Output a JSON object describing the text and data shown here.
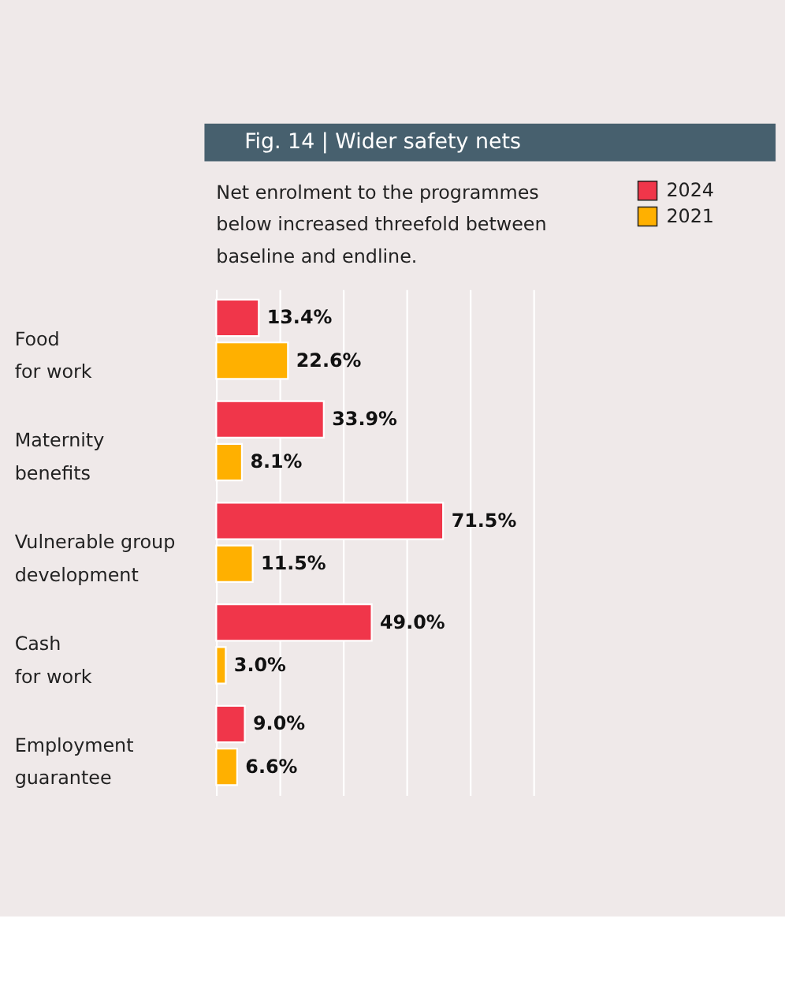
{
  "chart_data": {
    "type": "bar",
    "orientation": "horizontal",
    "title": "Fig. 14 | Wider safety nets",
    "subtitle": "Net enrolment to the programmes below increased threefold  between baseline and endline.",
    "categories": [
      "Food\nfor work",
      "Maternity\nbenefits",
      "Vulnerable group\ndevelopment",
      "Cash\nfor work",
      "Employment\nguarantee"
    ],
    "series": [
      {
        "name": "2024",
        "color": "#f0364a",
        "values": [
          13.4,
          33.9,
          71.5,
          49.0,
          9.0
        ],
        "value_labels": [
          "13.4%",
          "33.9%",
          "71.5%",
          "49.0%",
          "9.0%"
        ]
      },
      {
        "name": "2021",
        "color": "#ffb000",
        "values": [
          22.6,
          8.1,
          11.5,
          3.0,
          6.6
        ],
        "value_labels": [
          "22.6%",
          "8.1%",
          "11.5%",
          "3.0%",
          "6.6%"
        ]
      }
    ],
    "xlim": [
      0,
      100
    ],
    "xticks": [
      {
        "value": 0,
        "label": null
      },
      {
        "value": 20,
        "label": null
      },
      {
        "value": 40,
        "label": null
      },
      {
        "value": 60,
        "label": null
      },
      {
        "value": 80,
        "label": null
      },
      {
        "value": 100,
        "label": null
      }
    ],
    "tick_labels": "y",
    "grid": "x",
    "legend": "top right"
  }
}
